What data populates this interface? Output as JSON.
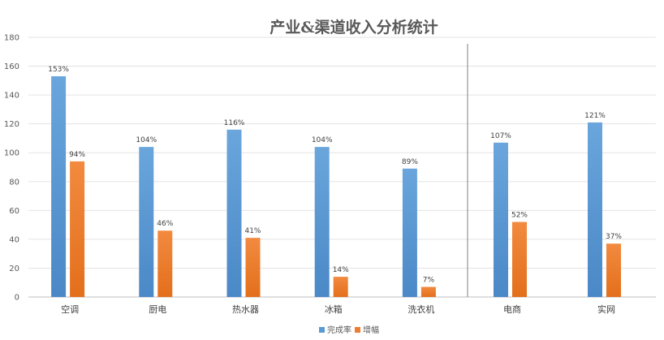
{
  "chart_data": {
    "type": "bar",
    "title": "产业&渠道收入分析统计",
    "xlabel": "",
    "ylabel": "",
    "ylim": [
      0,
      180
    ],
    "yticks": [
      0,
      20,
      40,
      60,
      80,
      100,
      120,
      140,
      160,
      180
    ],
    "categories": [
      "空调",
      "厨电",
      "热水器",
      "冰箱",
      "洗衣机",
      "电商",
      "实网"
    ],
    "series": [
      {
        "name": "完成率",
        "color": "#5b9bd5",
        "values": [
          153,
          104,
          116,
          104,
          89,
          107,
          121
        ],
        "labels": [
          "153%",
          "104%",
          "116%",
          "104%",
          "89%",
          "107%",
          "121%"
        ]
      },
      {
        "name": "增幅",
        "color": "#ed7d31",
        "values": [
          94,
          46,
          41,
          14,
          7,
          52,
          37
        ],
        "labels": [
          "94%",
          "46%",
          "41%",
          "14%",
          "7%",
          "52%",
          "37%"
        ]
      }
    ],
    "separator_after_category": "洗衣机",
    "grid": true,
    "legend_position": "bottom"
  }
}
